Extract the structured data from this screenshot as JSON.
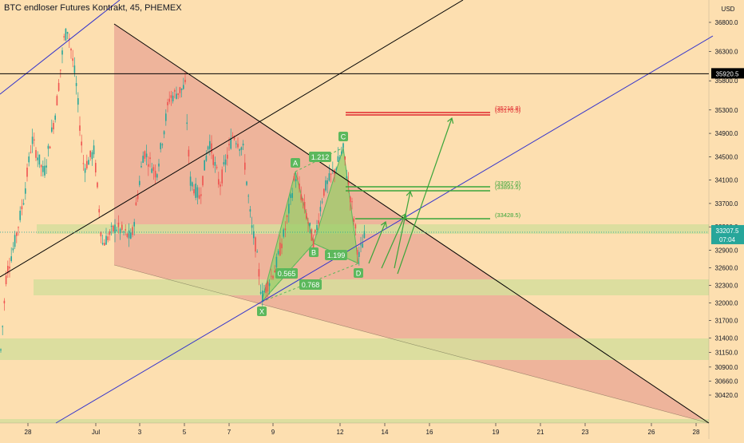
{
  "header": {
    "title": "BTC endloser Futures Kontrakt, 45, PHEMEX",
    "currency": "USD"
  },
  "colors": {
    "background": "#fddfb0",
    "candle_up": "#26a69a",
    "candle_down": "#ef5350",
    "triangle_fill": "#e8a594",
    "zone_fill": "#d6de9c",
    "pattern_fill": "#9acd6a",
    "pattern_label": "#5cb85c",
    "trendline": "#000000",
    "channel": "#3333cc",
    "target_red": "#e0282e",
    "target_green": "#3aa53a",
    "price_badge": "#26a69a"
  },
  "chart_data": {
    "type": "candlestick",
    "title": "BTC endloser Futures Kontrakt, 45, PHEMEX",
    "timeframe": "45",
    "y_axis": {
      "label": "USD",
      "ticks": [
        36800.0,
        36300.0,
        35800.0,
        35300.0,
        34900.0,
        34500.0,
        34100.0,
        33700.0,
        33300.0,
        32900.0,
        32600.0,
        32300.0,
        32000.0,
        31700.0,
        31400.0,
        31150.0,
        30900.0,
        30660.0,
        30420.0
      ],
      "range": [
        30300,
        37100
      ]
    },
    "x_axis": {
      "ticks": [
        "28",
        "Jul",
        "3",
        "5",
        "7",
        "9",
        "12",
        "14",
        "16",
        "19",
        "21",
        "23",
        "26",
        "28"
      ]
    },
    "last_price": "33207.5",
    "countdown": "07:04",
    "horizontal_line_price": "35920.5",
    "harmonic_pattern": {
      "points": [
        {
          "label": "X",
          "price": 32050
        },
        {
          "label": "A",
          "price": 34200
        },
        {
          "label": "B",
          "price": 33000
        },
        {
          "label": "C",
          "price": 34620
        },
        {
          "label": "D",
          "price": 32750
        }
      ],
      "ratios": [
        "0.565",
        "0.768",
        "1.212",
        "1.199"
      ]
    },
    "targets": [
      {
        "label": "(35216.8)",
        "color": "red"
      },
      {
        "label": "(35170.5)",
        "color": "red"
      },
      {
        "label": "(33957.0)",
        "color": "green"
      },
      {
        "label": "(33893.5)",
        "color": "green"
      },
      {
        "label": "(33428.5)",
        "color": "green"
      }
    ]
  }
}
